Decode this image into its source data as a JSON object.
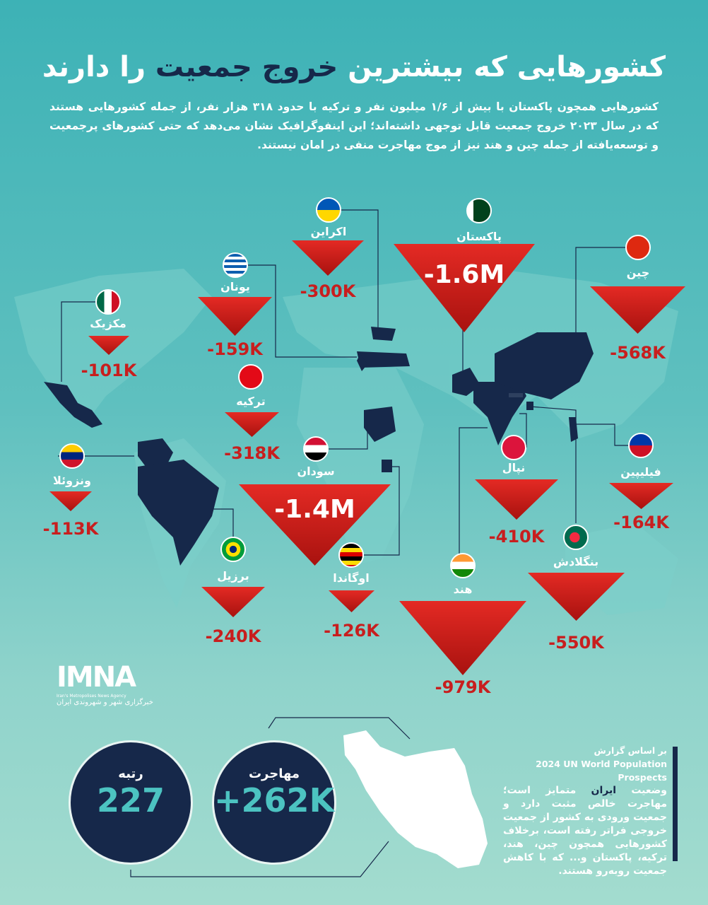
{
  "title": {
    "part1": "کشورهایی که بیشترین",
    "highlight": "خروج جمعیت",
    "part2": "را دارند"
  },
  "intro": "کشورهایی همچون پاکستان با بیش از ۱/۶ میلیون نفر و ترکیه با حدود ۳۱۸ هزار نفر، از جمله کشورهایی هستند که در سال ۲۰۲۳ خروج جمعیت قابل توجهی داشته‌اند؛ این اینفوگرافیک نشان می‌دهد که حتی کشورهای پرجمعیت و توسعه‌یافته از جمله چین و هند نیز از موج مهاجرت منفی در امان نیستند.",
  "colors": {
    "accent": "#d7201c",
    "navy": "#16284a",
    "teal": "#3db2b6"
  },
  "countries": [
    {
      "name": "پاکستان",
      "value": "-1.6M",
      "flag": "pakistan-flag"
    },
    {
      "name": "اکراین",
      "value": "-300K",
      "flag": "ukraine-flag"
    },
    {
      "name": "یونان",
      "value": "-159K",
      "flag": "greece-flag"
    },
    {
      "name": "مکزیک",
      "value": "-101K",
      "flag": "mexico-flag"
    },
    {
      "name": "چین",
      "value": "-568K",
      "flag": "china-flag"
    },
    {
      "name": "ترکیه",
      "value": "-318K",
      "flag": "turkey-flag"
    },
    {
      "name": "ونزوئلا",
      "value": "-113K",
      "flag": "venezuela-flag"
    },
    {
      "name": "سودان",
      "value": "-1.4M",
      "flag": "sudan-flag"
    },
    {
      "name": "نپال",
      "value": "-410K",
      "flag": "nepal-flag"
    },
    {
      "name": "فیلیپین",
      "value": "-164K",
      "flag": "philippines-flag"
    },
    {
      "name": "بنگلادش",
      "value": "-550K",
      "flag": "bangladesh-flag"
    },
    {
      "name": "برزیل",
      "value": "-240K",
      "flag": "brazil-flag"
    },
    {
      "name": "اوگاندا",
      "value": "-126K",
      "flag": "uganda-flag"
    },
    {
      "name": "هند",
      "value": "-979K",
      "flag": "india-flag"
    }
  ],
  "iran": {
    "rank_label": "رتبه",
    "rank_value": "227",
    "migration_label": "مهاجرت",
    "migration_value": "+262K"
  },
  "note": {
    "source_prefix": "بر اساس گزارش",
    "source": "2024 UN World Population Prospects",
    "text_before": "وضعیت",
    "highlight": "ایران",
    "text_after": "متمایز است؛ مهاجرت خالص مثبت دارد و جمعیت ورودی به کشور از جمعیت خروجی فراتر رفته است، برخلاف کشورهایی همچون چین، هند، ترکیه، پاکستان و... که با کاهش جمعیت روبه‌رو هستند."
  },
  "logo": {
    "text": "IMNA",
    "tagline": "Iran's Metropolises News Agency",
    "fa": "خبرگزاری شهر و شهروندی ایران"
  }
}
